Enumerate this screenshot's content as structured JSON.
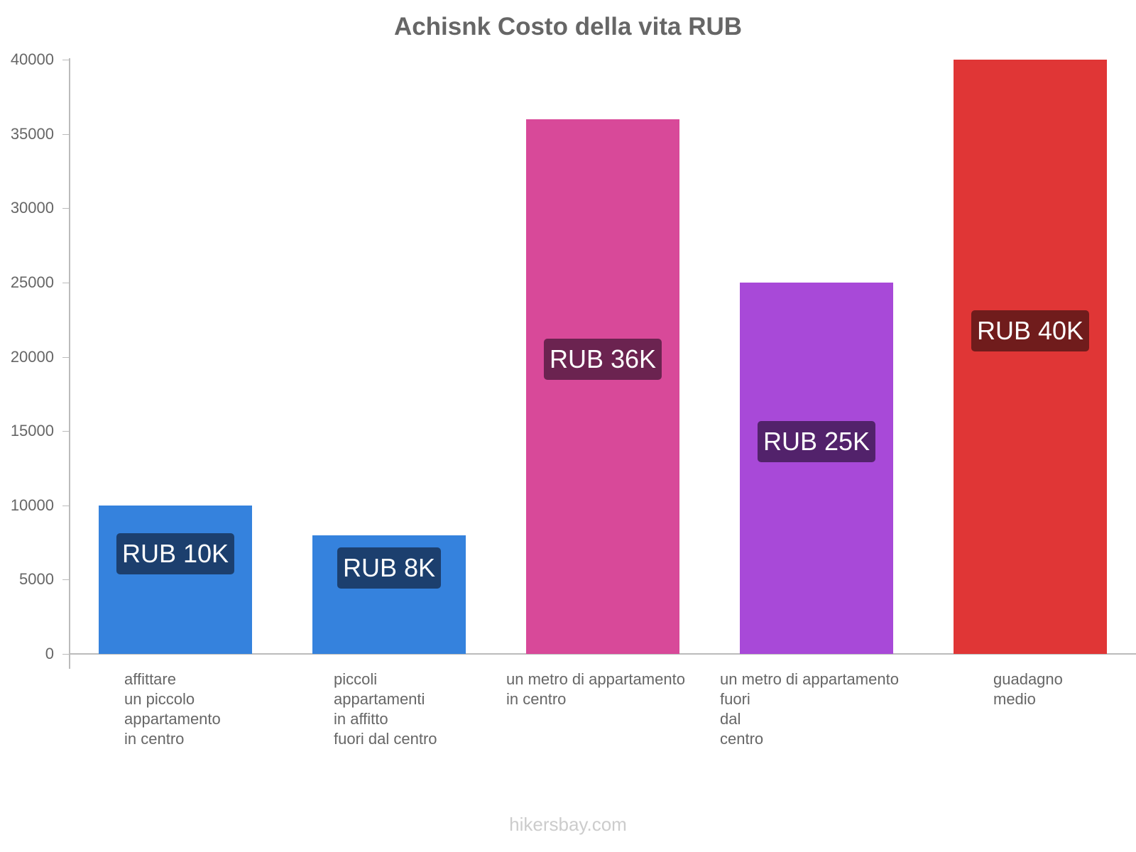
{
  "chart_data": {
    "type": "bar",
    "title": "Achisnk Costo della vita RUB",
    "xlabel": "",
    "ylabel": "",
    "ylim": [
      0,
      40000
    ],
    "yticks": [
      0,
      5000,
      10000,
      15000,
      20000,
      25000,
      30000,
      35000,
      40000
    ],
    "grid": false,
    "legend": null,
    "categories": [
      "affittare un piccolo appartamento in centro",
      "piccoli appartamenti in affitto fuori dal centro",
      "un metro di appartamento in centro",
      "un metro di appartamento fuori dal centro",
      "guadagno medio"
    ],
    "values": [
      10000,
      8000,
      36000,
      25000,
      40000
    ],
    "data_labels": [
      "RUB 10K",
      "RUB 8K",
      "RUB 36K",
      "RUB 25K",
      "RUB 40K"
    ],
    "bar_colors": [
      "#3582dd",
      "#3582dd",
      "#d84999",
      "#a849d8",
      "#e03636"
    ],
    "label_bg_colors": [
      "#1c3f6e",
      "#1c3f6e",
      "#6b2350",
      "#52226b",
      "#701c1c"
    ]
  },
  "title": "Achisnk Costo della vita RUB",
  "yticks": [
    "0",
    "5000",
    "10000",
    "15000",
    "20000",
    "25000",
    "30000",
    "35000",
    "40000"
  ],
  "bars": [
    {
      "label": "affittare\nun piccolo\nappartamento\nin centro",
      "badge": "RUB 10K"
    },
    {
      "label": "piccoli\nappartamenti\nin affitto\nfuori dal centro",
      "badge": "RUB 8K"
    },
    {
      "label": "un metro di appartamento\nin centro",
      "badge": "RUB 36K"
    },
    {
      "label": "un metro di appartamento\nfuori\ndal\ncentro",
      "badge": "RUB 25K"
    },
    {
      "label": "guadagno\nmedio",
      "badge": "RUB 40K"
    }
  ],
  "watermark": "hikersbay.com"
}
